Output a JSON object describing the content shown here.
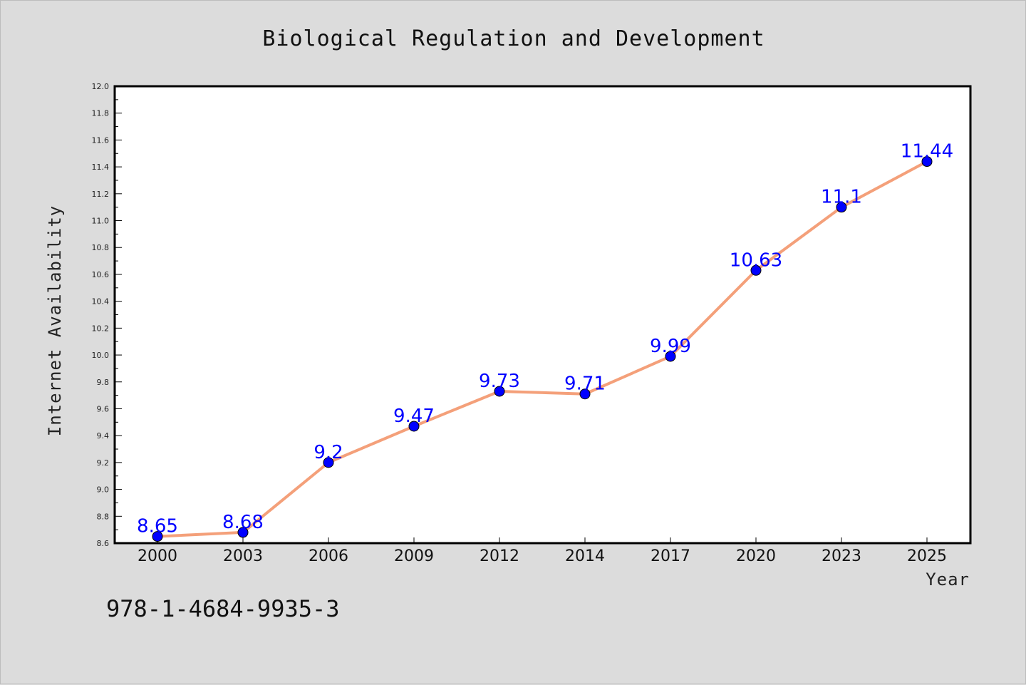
{
  "chart_data": {
    "type": "line",
    "title": "Biological Regulation and Development",
    "xlabel": "Year",
    "ylabel": "Internet Availability",
    "x": [
      "2000",
      "2003",
      "2006",
      "2009",
      "2012",
      "2014",
      "2017",
      "2020",
      "2023",
      "2025"
    ],
    "series": [
      {
        "values": [
          8.65,
          8.68,
          9.2,
          9.47,
          9.73,
          9.71,
          9.99,
          10.63,
          11.1,
          11.44
        ],
        "data_labels": [
          "8.65",
          "8.68",
          "9.2",
          "9.47",
          "9.73",
          "9.71",
          "9.99",
          "10.63",
          "11.1",
          "11.44"
        ],
        "line_color": "#f4a07a",
        "marker_color": "#0000ff"
      }
    ],
    "ylim": [
      8.6,
      12.0
    ],
    "yticks": [
      "8.6",
      "8.8",
      "9.0",
      "9.2",
      "9.4",
      "9.6",
      "9.8",
      "10.0",
      "10.2",
      "10.4",
      "10.6",
      "10.8",
      "11.0",
      "11.2",
      "11.4",
      "11.6",
      "11.8",
      "12.0"
    ],
    "grid": false,
    "legend": "none",
    "label_color": "#0000ff",
    "background_color": "#dcdcdc",
    "plot_background_color": "#ffffff"
  },
  "footer": {
    "isbn": "978-1-4684-9935-3"
  }
}
